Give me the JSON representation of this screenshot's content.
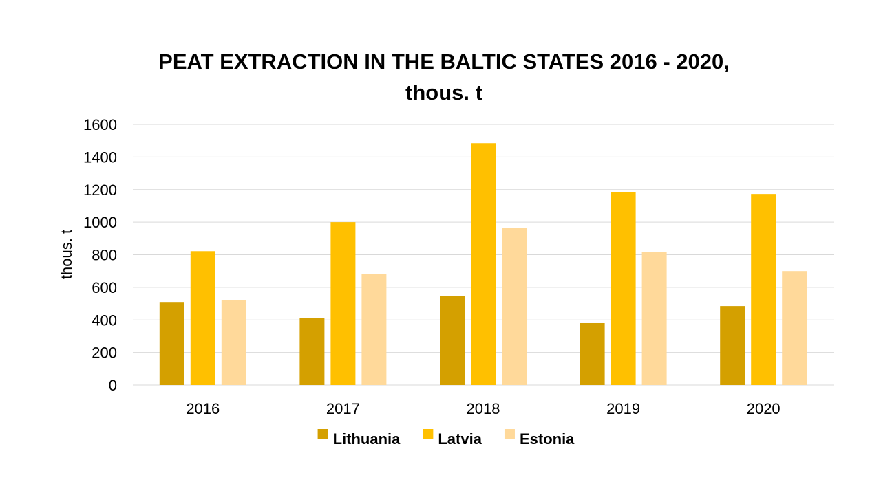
{
  "chart_data": {
    "type": "bar",
    "title_line1": "PEAT EXTRACTION IN THE BALTIC STATES 2016 - 2020,",
    "title_line2": "thous. t",
    "xlabel": "",
    "ylabel": "thous. t",
    "ylim": [
      0,
      1600
    ],
    "yticks": [
      0,
      200,
      400,
      600,
      800,
      1000,
      1200,
      1400,
      1600
    ],
    "grid": true,
    "legend_position": "bottom",
    "categories": [
      "2016",
      "2017",
      "2018",
      "2019",
      "2020"
    ],
    "series": [
      {
        "name": "Lithuania",
        "color": "#D4A000",
        "values": [
          510,
          413,
          545,
          380,
          485
        ]
      },
      {
        "name": "Latvia",
        "color": "#FFC000",
        "values": [
          822,
          1000,
          1485,
          1185,
          1173
        ]
      },
      {
        "name": "Estonia",
        "color": "#FFD99A",
        "values": [
          520,
          680,
          965,
          815,
          700
        ]
      }
    ]
  }
}
